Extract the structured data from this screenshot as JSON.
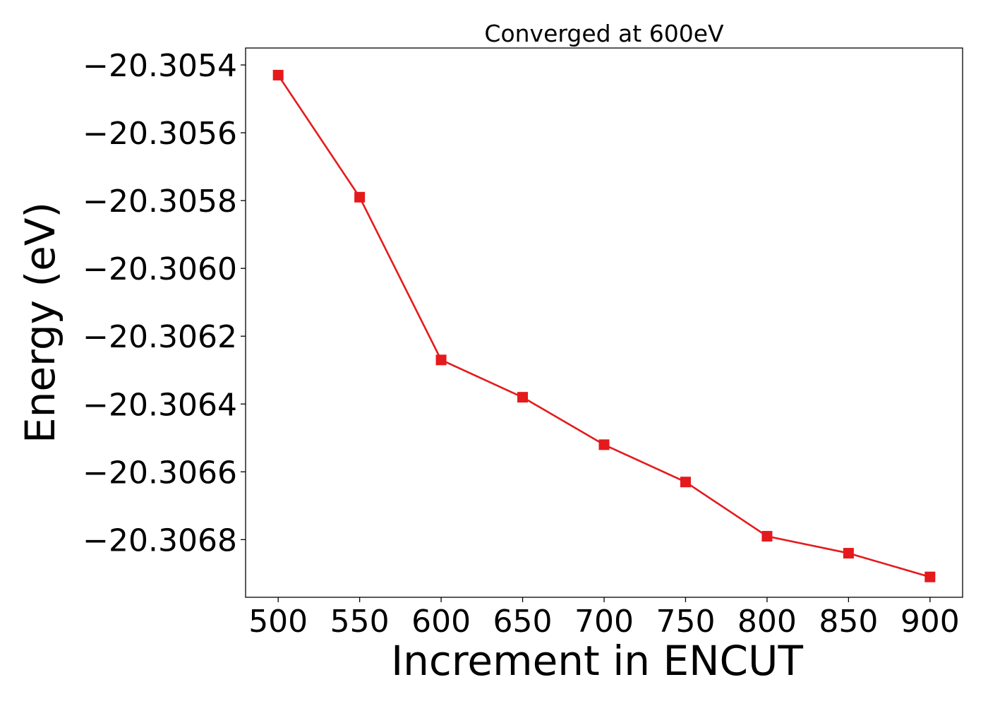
{
  "chart_data": {
    "type": "line",
    "title": "Converged at 600eV",
    "xlabel": "Increment in ENCUT",
    "ylabel": "Energy (eV)",
    "x": [
      500,
      550,
      600,
      650,
      700,
      750,
      800,
      850,
      900
    ],
    "series": [
      {
        "values": [
          -20.30543,
          -20.30579,
          -20.30627,
          -20.30638,
          -20.30652,
          -20.30663,
          -20.30679,
          -20.30684,
          -20.30691
        ],
        "color": "#e41a1c",
        "marker": "square"
      }
    ],
    "xticks": [
      500,
      550,
      600,
      650,
      700,
      750,
      800,
      850,
      900
    ],
    "xtick_labels": [
      "500",
      "550",
      "600",
      "650",
      "700",
      "750",
      "800",
      "850",
      "900"
    ],
    "yticks": [
      -20.3054,
      -20.3056,
      -20.3058,
      -20.306,
      -20.3062,
      -20.3064,
      -20.3066,
      -20.3068
    ],
    "ytick_labels": [
      "−20.3054",
      "−20.3056",
      "−20.3058",
      "−20.3060",
      "−20.3062",
      "−20.3064",
      "−20.3066",
      "−20.3068"
    ],
    "xlim": [
      480,
      920
    ],
    "ylim": [
      -20.30697,
      -20.30535
    ],
    "grid": false,
    "legend": "none"
  }
}
